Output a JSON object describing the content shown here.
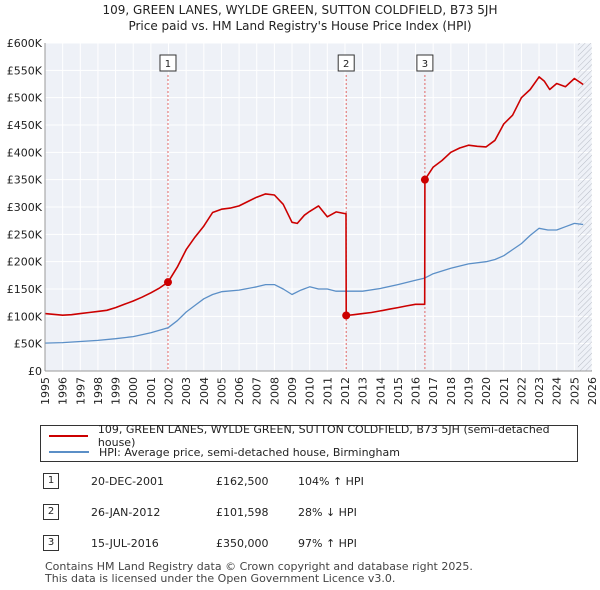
{
  "title_line1": "109, GREEN LANES, WYLDE GREEN, SUTTON COLDFIELD, B73 5JH",
  "title_line2": "Price paid vs. HM Land Registry's House Price Index (HPI)",
  "colors": {
    "property": "#cc0000",
    "hpi": "#5b8fc7",
    "sale_vline": "#e06666"
  },
  "chart_data": {
    "type": "line",
    "ylim": [
      0,
      600000
    ],
    "xlim": [
      1995,
      2026
    ],
    "y_ticks": [
      {
        "value": 0,
        "label": "£0"
      },
      {
        "value": 50000,
        "label": "£50K"
      },
      {
        "value": 100000,
        "label": "£100K"
      },
      {
        "value": 150000,
        "label": "£150K"
      },
      {
        "value": 200000,
        "label": "£200K"
      },
      {
        "value": 250000,
        "label": "£250K"
      },
      {
        "value": 300000,
        "label": "£300K"
      },
      {
        "value": 350000,
        "label": "£350K"
      },
      {
        "value": 400000,
        "label": "£400K"
      },
      {
        "value": 450000,
        "label": "£450K"
      },
      {
        "value": 500000,
        "label": "£500K"
      },
      {
        "value": 550000,
        "label": "£550K"
      },
      {
        "value": 600000,
        "label": "£600K"
      }
    ],
    "x_ticks": [
      "1995",
      "1996",
      "1997",
      "1998",
      "1999",
      "2000",
      "2001",
      "2002",
      "2003",
      "2004",
      "2005",
      "2006",
      "2007",
      "2008",
      "2009",
      "2010",
      "2011",
      "2012",
      "2013",
      "2014",
      "2015",
      "2016",
      "2017",
      "2018",
      "2019",
      "2020",
      "2021",
      "2022",
      "2023",
      "2024",
      "2025",
      "2026"
    ],
    "series": [
      {
        "name": "109, GREEN LANES, WYLDE GREEN, SUTTON COLDFIELD, B73 5JH (semi-detached house)",
        "key": "property",
        "x": [
          1995.0,
          1996.0,
          1996.5,
          1997.0,
          1997.5,
          1998.0,
          1998.5,
          1999.0,
          1999.5,
          2000.0,
          2000.5,
          2001.0,
          2001.5,
          2001.97,
          2002.5,
          2003.0,
          2003.5,
          2004.0,
          2004.5,
          2005.0,
          2005.5,
          2006.0,
          2006.5,
          2007.0,
          2007.5,
          2008.0,
          2008.5,
          2009.0,
          2009.3,
          2009.7,
          2010.0,
          2010.5,
          2011.0,
          2011.5,
          2012.0,
          2012.06,
          2012.07,
          2012.5,
          2013.0,
          2013.5,
          2014.0,
          2014.5,
          2015.0,
          2015.5,
          2016.0,
          2016.52,
          2016.53,
          2017.0,
          2017.5,
          2018.0,
          2018.5,
          2019.0,
          2019.5,
          2020.0,
          2020.5,
          2021.0,
          2021.5,
          2022.0,
          2022.5,
          2023.0,
          2023.3,
          2023.6,
          2024.0,
          2024.5,
          2025.0,
          2025.5
        ],
        "y": [
          105000,
          102000,
          103000,
          105000,
          107000,
          109000,
          111000,
          116000,
          122000,
          128000,
          135000,
          143000,
          152000,
          162500,
          190000,
          222000,
          245000,
          265000,
          290000,
          296000,
          298000,
          302000,
          310000,
          318000,
          324000,
          322000,
          305000,
          272000,
          270000,
          285000,
          292000,
          302000,
          282000,
          291000,
          288000,
          288000,
          101598,
          103000,
          105000,
          107000,
          110000,
          113000,
          116000,
          119000,
          122000,
          122000,
          350000,
          373000,
          385000,
          400000,
          408000,
          413000,
          411000,
          410000,
          422000,
          452000,
          468000,
          500000,
          515000,
          538000,
          530000,
          515000,
          526000,
          520000,
          535000,
          524000
        ]
      },
      {
        "name": "HPI: Average price, semi-detached house, Birmingham",
        "key": "hpi",
        "x": [
          1995.0,
          1996.0,
          1997.0,
          1998.0,
          1999.0,
          2000.0,
          2001.0,
          2001.97,
          2002.5,
          2003.0,
          2003.5,
          2004.0,
          2004.5,
          2005.0,
          2006.0,
          2007.0,
          2007.5,
          2008.0,
          2008.5,
          2009.0,
          2009.5,
          2010.0,
          2010.5,
          2011.0,
          2011.5,
          2012.0,
          2013.0,
          2014.0,
          2015.0,
          2016.0,
          2016.52,
          2017.0,
          2018.0,
          2019.0,
          2020.0,
          2020.5,
          2021.0,
          2021.5,
          2022.0,
          2022.5,
          2023.0,
          2023.5,
          2024.0,
          2024.5,
          2025.0,
          2025.5
        ],
        "y": [
          51000,
          52000,
          54000,
          56000,
          59000,
          63000,
          70000,
          79000,
          92000,
          108000,
          120000,
          132000,
          140000,
          145000,
          148000,
          154000,
          158000,
          158000,
          150000,
          140000,
          148000,
          154000,
          150000,
          150000,
          146000,
          146000,
          146000,
          151000,
          158000,
          166000,
          170000,
          178000,
          188000,
          196000,
          200000,
          204000,
          211000,
          222000,
          233000,
          248000,
          261000,
          258000,
          258000,
          264000,
          270000,
          268000
        ]
      }
    ],
    "sales": [
      {
        "n": "1",
        "x": 2001.97,
        "y": 162500
      },
      {
        "n": "2",
        "x": 2012.07,
        "y": 101598
      },
      {
        "n": "3",
        "x": 2016.53,
        "y": 350000
      }
    ],
    "future_from": 2025.2
  },
  "legend": {
    "property_label": "109, GREEN LANES, WYLDE GREEN, SUTTON COLDFIELD, B73 5JH (semi-detached house)",
    "hpi_label": "HPI: Average price, semi-detached house, Birmingham"
  },
  "sales_table": [
    {
      "num": "1",
      "date": "20-DEC-2001",
      "price": "£162,500",
      "hpi": "104% ↑ HPI"
    },
    {
      "num": "2",
      "date": "26-JAN-2012",
      "price": "£101,598",
      "hpi": "28% ↓ HPI"
    },
    {
      "num": "3",
      "date": "15-JUL-2016",
      "price": "£350,000",
      "hpi": "97% ↑ HPI"
    }
  ],
  "footer_line1": "Contains HM Land Registry data © Crown copyright and database right 2025.",
  "footer_line2": "This data is licensed under the Open Government Licence v3.0."
}
